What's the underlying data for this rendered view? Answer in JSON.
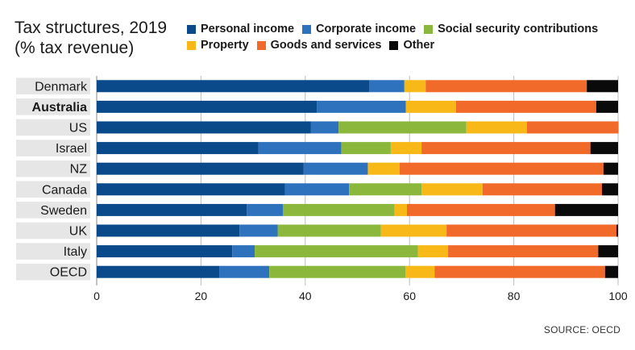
{
  "header": {
    "title_line1": "Tax structures, 2019",
    "title_line2": "(% tax revenue)"
  },
  "source": "SOURCE: OECD",
  "chart_data": {
    "type": "bar",
    "orientation": "horizontal",
    "stacked": true,
    "title": "Tax structures, 2019 (% tax revenue)",
    "xlim": [
      0,
      100
    ],
    "x_ticks": [
      0,
      20,
      40,
      60,
      80,
      100
    ],
    "grid": true,
    "legend_position": "top",
    "highlighted_category": "Australia",
    "categories": [
      "Denmark",
      "Australia",
      "US",
      "Israel",
      "NZ",
      "Canada",
      "Sweden",
      "UK",
      "Italy",
      "OECD"
    ],
    "series": [
      {
        "name": "Personal income",
        "color": "#0a4a8a",
        "values": [
          52.3,
          42.2,
          41.1,
          31.0,
          39.7,
          36.1,
          28.8,
          27.4,
          26.0,
          23.5
        ]
      },
      {
        "name": "Corporate income",
        "color": "#2e72bd",
        "values": [
          6.7,
          17.1,
          5.3,
          15.9,
          12.3,
          12.3,
          6.9,
          7.3,
          4.3,
          9.6
        ]
      },
      {
        "name": "Social security contributions",
        "color": "#8bb83c",
        "values": [
          0.1,
          0.0,
          24.5,
          9.5,
          0.0,
          13.9,
          21.4,
          19.8,
          31.3,
          26.1
        ]
      },
      {
        "name": "Property",
        "color": "#f7b818",
        "values": [
          4.0,
          9.6,
          11.6,
          5.9,
          6.1,
          11.7,
          2.4,
          12.6,
          5.8,
          5.6
        ]
      },
      {
        "name": "Goods and services",
        "color": "#f26a2a",
        "values": [
          30.9,
          26.9,
          17.6,
          32.4,
          39.1,
          22.9,
          28.4,
          32.6,
          28.8,
          32.7
        ]
      },
      {
        "name": "Other",
        "color": "#0a0a0a",
        "values": [
          6.0,
          4.2,
          0.0,
          5.3,
          2.8,
          3.1,
          12.1,
          0.3,
          3.8,
          2.5
        ]
      }
    ]
  }
}
